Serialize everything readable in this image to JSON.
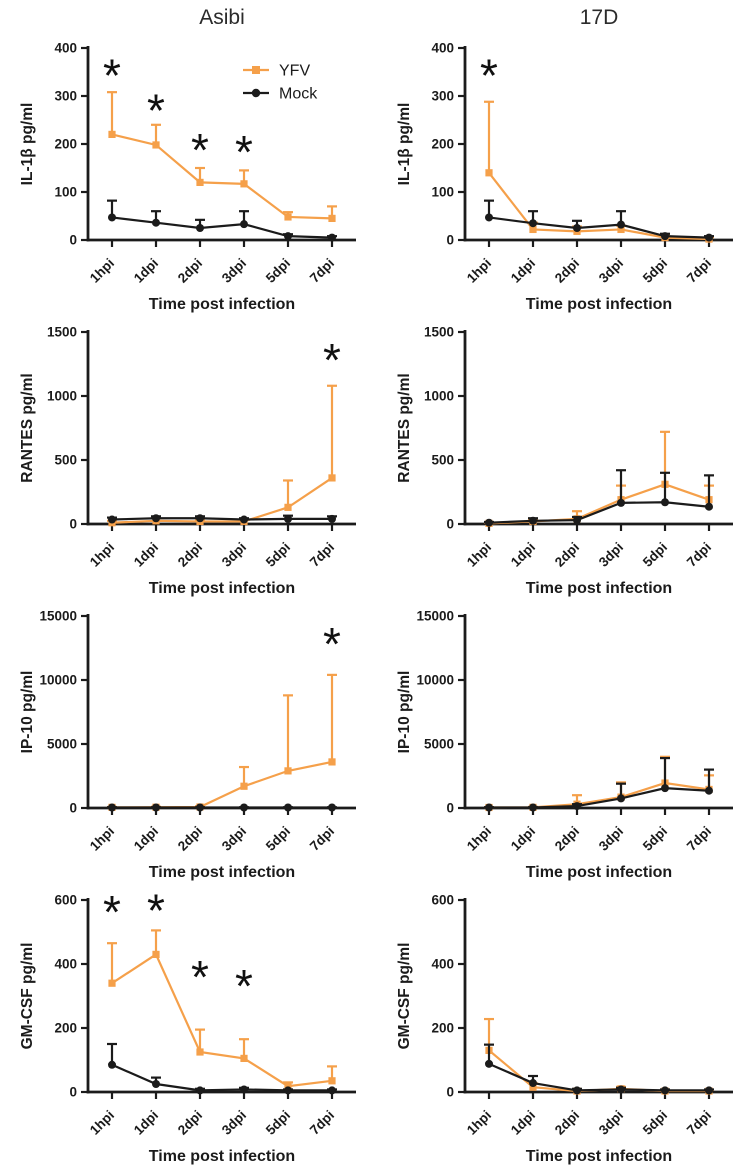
{
  "figure": {
    "column_titles": [
      "Asibi",
      "17D"
    ]
  },
  "legend": {
    "items": [
      {
        "label": "YFV",
        "color": "#F5A04A",
        "marker": "square"
      },
      {
        "label": "Mock",
        "color": "#1B1B1B",
        "marker": "circle"
      }
    ]
  },
  "colors": {
    "accent_orange": "#F5A04A",
    "series_black": "#1B1B1B",
    "axis": "#1B1B1B"
  },
  "chart_data": [
    {
      "type": "line",
      "panel": "il1b-asibi",
      "column": "Asibi",
      "show_legend": true,
      "ylabel": "IL-1β pg/ml",
      "xlabel": "Time post infection",
      "categories": [
        "1hpi",
        "1dpi",
        "2dpi",
        "3dpi",
        "5dpi",
        "7dpi"
      ],
      "ylim": [
        0,
        400
      ],
      "yticks": [
        0,
        100,
        200,
        300,
        400
      ],
      "series": [
        {
          "name": "YFV",
          "color": "#F5A04A",
          "marker": "square",
          "values": [
            220,
            198,
            120,
            117,
            48,
            45
          ],
          "err_up": [
            88,
            42,
            30,
            28,
            10,
            25
          ]
        },
        {
          "name": "Mock",
          "color": "#1B1B1B",
          "marker": "circle",
          "values": [
            47,
            36,
            25,
            33,
            8,
            5
          ],
          "err_up": [
            35,
            24,
            17,
            27,
            4,
            3
          ]
        }
      ],
      "asterisks": [
        {
          "x": 0,
          "y": 345
        },
        {
          "x": 1,
          "y": 272
        },
        {
          "x": 2,
          "y": 190
        },
        {
          "x": 3,
          "y": 185
        }
      ]
    },
    {
      "type": "line",
      "panel": "il1b-17d",
      "column": "17D",
      "show_legend": false,
      "ylabel": "IL-1β pg/ml",
      "xlabel": "Time post infection",
      "categories": [
        "1hpi",
        "1dpi",
        "2dpi",
        "3dpi",
        "5dpi",
        "7dpi"
      ],
      "ylim": [
        0,
        400
      ],
      "yticks": [
        0,
        100,
        200,
        300,
        400
      ],
      "series": [
        {
          "name": "YFV",
          "color": "#F5A04A",
          "marker": "square",
          "values": [
            140,
            22,
            18,
            22,
            5,
            2
          ],
          "err_up": [
            148,
            14,
            10,
            8,
            6,
            4
          ]
        },
        {
          "name": "Mock",
          "color": "#1B1B1B",
          "marker": "circle",
          "values": [
            47,
            35,
            25,
            32,
            8,
            5
          ],
          "err_up": [
            35,
            25,
            15,
            28,
            5,
            3
          ]
        }
      ],
      "asterisks": [
        {
          "x": 0,
          "y": 345
        }
      ]
    },
    {
      "type": "line",
      "panel": "rantes-asibi",
      "column": "Asibi",
      "show_legend": false,
      "ylabel": "RANTES pg/ml",
      "xlabel": "Time post infection",
      "categories": [
        "1hpi",
        "1dpi",
        "2dpi",
        "3dpi",
        "5dpi",
        "7dpi"
      ],
      "ylim": [
        0,
        1500
      ],
      "yticks": [
        0,
        500,
        1000,
        1500
      ],
      "series": [
        {
          "name": "YFV",
          "color": "#F5A04A",
          "marker": "square",
          "values": [
            10,
            25,
            20,
            20,
            130,
            360
          ],
          "err_up": [
            15,
            20,
            15,
            15,
            210,
            720
          ]
        },
        {
          "name": "Mock",
          "color": "#1B1B1B",
          "marker": "circle",
          "values": [
            35,
            45,
            45,
            35,
            40,
            40
          ],
          "err_up": [
            15,
            15,
            15,
            10,
            25,
            20
          ]
        }
      ],
      "asterisks": [
        {
          "x": 5,
          "y": 1290
        }
      ]
    },
    {
      "type": "line",
      "panel": "rantes-17d",
      "column": "17D",
      "show_legend": false,
      "ylabel": "RANTES pg/ml",
      "xlabel": "Time post infection",
      "categories": [
        "1hpi",
        "1dpi",
        "2dpi",
        "3dpi",
        "5dpi",
        "7dpi"
      ],
      "ylim": [
        0,
        1500
      ],
      "yticks": [
        0,
        500,
        1000,
        1500
      ],
      "series": [
        {
          "name": "YFV",
          "color": "#F5A04A",
          "marker": "square",
          "values": [
            5,
            20,
            40,
            190,
            310,
            190
          ],
          "err_up": [
            8,
            20,
            60,
            110,
            410,
            110
          ]
        },
        {
          "name": "Mock",
          "color": "#1B1B1B",
          "marker": "circle",
          "values": [
            10,
            25,
            30,
            165,
            170,
            135
          ],
          "err_up": [
            6,
            20,
            25,
            255,
            230,
            245
          ]
        }
      ],
      "asterisks": []
    },
    {
      "type": "line",
      "panel": "ip10-asibi",
      "column": "Asibi",
      "show_legend": false,
      "ylabel": "IP-10 pg/ml",
      "xlabel": "Time post infection",
      "categories": [
        "1hpi",
        "1dpi",
        "2dpi",
        "3dpi",
        "5dpi",
        "7dpi"
      ],
      "ylim": [
        0,
        15000
      ],
      "yticks": [
        0,
        5000,
        10000,
        15000
      ],
      "series": [
        {
          "name": "YFV",
          "color": "#F5A04A",
          "marker": "square",
          "values": [
            50,
            60,
            80,
            1700,
            2900,
            3600
          ],
          "err_up": [
            30,
            40,
            60,
            1500,
            5900,
            6800
          ]
        },
        {
          "name": "Mock",
          "color": "#1B1B1B",
          "marker": "circle",
          "values": [
            40,
            40,
            40,
            40,
            40,
            40
          ],
          "err_up": [
            20,
            20,
            20,
            20,
            20,
            20
          ]
        }
      ],
      "asterisks": [
        {
          "x": 5,
          "y": 12900
        }
      ]
    },
    {
      "type": "line",
      "panel": "ip10-17d",
      "column": "17D",
      "show_legend": false,
      "ylabel": "IP-10 pg/ml",
      "xlabel": "Time post infection",
      "categories": [
        "1hpi",
        "1dpi",
        "2dpi",
        "3dpi",
        "5dpi",
        "7dpi"
      ],
      "ylim": [
        0,
        15000
      ],
      "yticks": [
        0,
        5000,
        10000,
        15000
      ],
      "series": [
        {
          "name": "YFV",
          "color": "#F5A04A",
          "marker": "square",
          "values": [
            40,
            50,
            300,
            850,
            1950,
            1450
          ],
          "err_up": [
            30,
            40,
            700,
            1150,
            2050,
            1100
          ]
        },
        {
          "name": "Mock",
          "color": "#1B1B1B",
          "marker": "circle",
          "values": [
            40,
            40,
            150,
            750,
            1550,
            1350
          ],
          "err_up": [
            20,
            20,
            150,
            1150,
            2350,
            1650
          ]
        }
      ],
      "asterisks": []
    },
    {
      "type": "line",
      "panel": "gmcsf-asibi",
      "column": "Asibi",
      "show_legend": false,
      "ylabel": "GM-CSF pg/ml",
      "xlabel": "Time post infection",
      "categories": [
        "1hpi",
        "1dpi",
        "2dpi",
        "3dpi",
        "5dpi",
        "7dpi"
      ],
      "ylim": [
        0,
        600
      ],
      "yticks": [
        0,
        200,
        400,
        600
      ],
      "series": [
        {
          "name": "YFV",
          "color": "#F5A04A",
          "marker": "square",
          "values": [
            340,
            430,
            125,
            105,
            18,
            35
          ],
          "err_up": [
            125,
            75,
            70,
            60,
            12,
            45
          ]
        },
        {
          "name": "Mock",
          "color": "#1B1B1B",
          "marker": "circle",
          "values": [
            85,
            25,
            5,
            8,
            5,
            5
          ],
          "err_up": [
            65,
            20,
            5,
            5,
            3,
            3
          ]
        }
      ],
      "asterisks": [
        {
          "x": 0,
          "y": 565
        },
        {
          "x": 1,
          "y": 570
        },
        {
          "x": 2,
          "y": 362
        },
        {
          "x": 3,
          "y": 335
        }
      ]
    },
    {
      "type": "line",
      "panel": "gmcsf-17d",
      "column": "17D",
      "show_legend": false,
      "ylabel": "GM-CSF pg/ml",
      "xlabel": "Time post infection",
      "categories": [
        "1hpi",
        "1dpi",
        "2dpi",
        "3dpi",
        "5dpi",
        "7dpi"
      ],
      "ylim": [
        0,
        600
      ],
      "yticks": [
        0,
        200,
        400,
        600
      ],
      "series": [
        {
          "name": "YFV",
          "color": "#F5A04A",
          "marker": "square",
          "values": [
            130,
            15,
            3,
            10,
            3,
            3
          ],
          "err_up": [
            98,
            12,
            5,
            6,
            4,
            4
          ]
        },
        {
          "name": "Mock",
          "color": "#1B1B1B",
          "marker": "circle",
          "values": [
            88,
            28,
            5,
            8,
            5,
            5
          ],
          "err_up": [
            60,
            22,
            5,
            5,
            3,
            3
          ]
        }
      ],
      "asterisks": []
    }
  ]
}
